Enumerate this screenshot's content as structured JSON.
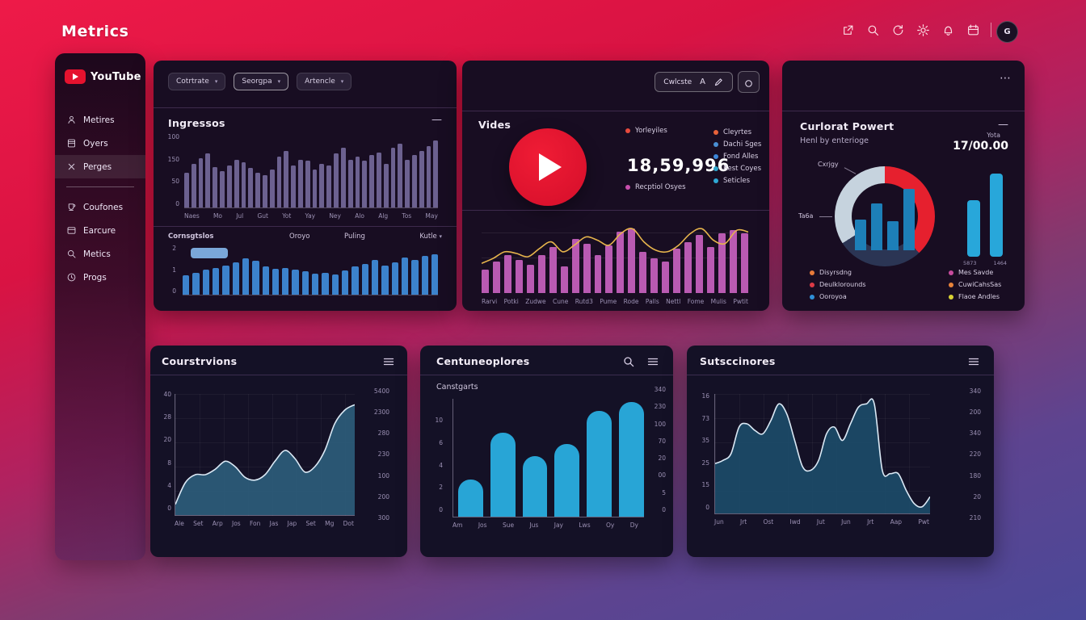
{
  "page": {
    "title": "Metrics",
    "avatar_initial": "G"
  },
  "topbar": {
    "icons": [
      "share",
      "search",
      "refresh",
      "gear",
      "bell",
      "calendar"
    ]
  },
  "sidebar": {
    "logo_text": "YouTube",
    "items": [
      {
        "icon": "person",
        "label": "Metires",
        "active": false
      },
      {
        "icon": "book",
        "label": "Oyers",
        "active": false
      },
      {
        "icon": "close",
        "label": "Perges",
        "active": true
      },
      {
        "icon": "cup",
        "label": "Coufones",
        "active": false
      },
      {
        "icon": "card",
        "label": "Earcure",
        "active": false
      },
      {
        "icon": "search",
        "label": "Metics",
        "active": false
      },
      {
        "icon": "clock",
        "label": "Progs",
        "active": false
      }
    ]
  },
  "cards": {
    "ingressos": {
      "filters": [
        "Cotrtrate",
        "Seorgpa",
        "Artencle"
      ],
      "title": "Ingressos",
      "collapse_label": "—",
      "sub_title": "Cornsgtslos",
      "sub_col1": "Oroyo",
      "sub_col2": "Puling",
      "sub_metric": "Kutle"
    },
    "vides": {
      "toolbar_label": "Cwlcste",
      "toolbar_letter": "A",
      "title": "Vides",
      "count": "18,59,996",
      "legend_left": [
        {
          "label": "Yorleyiles",
          "color": "#e84a3d"
        },
        {
          "label": "Recptiol Osyes",
          "color": "#c94fae"
        }
      ],
      "legend_right": [
        {
          "label": "Cleyrtes",
          "color": "#e8623a"
        },
        {
          "label": "Dachi Sges",
          "color": "#4a8fd4"
        },
        {
          "label": "Fond Alles",
          "color": "#3d86d8"
        },
        {
          "label": "Rest Coyes",
          "color": "#2fa4cc"
        },
        {
          "label": "Seticles",
          "color": "#2fa8d4"
        }
      ]
    },
    "powert": {
      "menu_label": "⋯",
      "title": "Curlorat Powert",
      "subtitle": "Henl by enterioge",
      "total_label": "Yota",
      "total_value": "17/00.00",
      "collapse_label": "—",
      "donut_label_top": "Cxrjgy",
      "donut_label_left": "Ta6a",
      "legend_left": [
        {
          "label": "Disyrsdng",
          "color": "#e87a3a"
        },
        {
          "label": "Deulklorounds",
          "color": "#dd3a46"
        },
        {
          "label": "Ooroyoa",
          "color": "#2f8fd8"
        }
      ],
      "legend_right": [
        {
          "label": "Mes Savde",
          "color": "#c84b9e"
        },
        {
          "label": "CuwiCahsSas",
          "color": "#e8833a"
        },
        {
          "label": "Flaoe Andles",
          "color": "#d9d233"
        }
      ]
    },
    "courstrvions": {
      "title": "Courstrvions"
    },
    "centneoplores": {
      "title": "Centuneoplores",
      "subtitle": "Canstgarts"
    },
    "sutscdnores": {
      "title": "Sutsccinores"
    }
  },
  "chart_data": [
    {
      "id": "ingressos_bars",
      "type": "bar",
      "values": [
        48,
        60,
        68,
        74,
        56,
        50,
        58,
        66,
        62,
        55,
        48,
        45,
        52,
        70,
        78,
        58,
        66,
        64,
        52,
        60,
        58,
        74,
        82,
        66,
        70,
        64,
        72,
        76,
        60,
        82,
        88,
        66,
        72,
        78,
        84,
        92
      ],
      "x_labels": [
        "Naes",
        "Mo",
        "Jul",
        "Gut",
        "Yot",
        "Yay",
        "Ney",
        "Alo",
        "Alg",
        "Tos",
        "May"
      ],
      "y_labels": [
        "100",
        "150",
        "50",
        "0"
      ],
      "ylim": [
        0,
        100
      ],
      "bar_color": "#6c6190",
      "title": "Ingressos"
    },
    {
      "id": "ingressos_categories",
      "type": "bar",
      "values": [
        38,
        44,
        50,
        54,
        58,
        64,
        72,
        68,
        56,
        52,
        54,
        50,
        46,
        42,
        44,
        40,
        48,
        56,
        62,
        70,
        58,
        64,
        74,
        70,
        78,
        80
      ],
      "y_labels": [
        "2",
        "1",
        "0"
      ],
      "ylim": [
        0,
        100
      ],
      "bar_color": "#3c82cc",
      "title": "Cornsgtslos"
    },
    {
      "id": "vides_mix",
      "type": "bar",
      "values": [
        28,
        38,
        46,
        40,
        34,
        46,
        56,
        32,
        66,
        60,
        46,
        58,
        74,
        78,
        50,
        42,
        38,
        54,
        62,
        70,
        56,
        72,
        76,
        72
      ],
      "line_values": [
        36,
        42,
        50,
        48,
        44,
        54,
        62,
        50,
        58,
        68,
        64,
        58,
        72,
        78,
        62,
        52,
        50,
        58,
        72,
        78,
        64,
        60,
        76,
        74
      ],
      "x_labels": [
        "Rarvi",
        "Potki",
        "Zudwe",
        "Cune",
        "Rutd3",
        "Pume",
        "Rode",
        "Palls",
        "Nettl",
        "Fome",
        "Mulis",
        "Pwtit"
      ],
      "ylim": [
        0,
        90
      ],
      "bar_color": "#b95ab2",
      "line_color": "#e6b44c",
      "title": "Vides"
    },
    {
      "id": "powert_donut",
      "type": "pie",
      "segments": [
        {
          "label": "Cxrjgy",
          "value": 38,
          "color": "#e6202e"
        },
        {
          "label": "",
          "value": 28,
          "color": "#2b3554"
        },
        {
          "label": "Ta6a",
          "value": 34,
          "color": "#c6d3de"
        }
      ],
      "title": "Curlorat Powert"
    },
    {
      "id": "powert_inner_bars",
      "type": "bar",
      "values": [
        38,
        58,
        36,
        76
      ],
      "ylim": [
        0,
        80
      ],
      "bar_color": "#1d7fb8"
    },
    {
      "id": "powert_side_bars",
      "type": "bar",
      "values": [
        68,
        100
      ],
      "x_labels": [
        "5873",
        "1464"
      ],
      "ylim": [
        0,
        100
      ],
      "bar_color": "#28a7da"
    },
    {
      "id": "courstrvions_area",
      "type": "area",
      "values": [
        4,
        12,
        15,
        15,
        17,
        20,
        18,
        14,
        13,
        15,
        20,
        24,
        21,
        16,
        18,
        24,
        34,
        39,
        41
      ],
      "x_labels": [
        "Ale",
        "Set",
        "Arp",
        "Jos",
        "Fon",
        "Jas",
        "Jap",
        "Set",
        "Mg",
        "Dot"
      ],
      "y_labels_left": [
        "40",
        "28",
        "20",
        "8",
        "4",
        "0"
      ],
      "y_labels_right": [
        "5400",
        "2300",
        "280",
        "230",
        "100",
        "200",
        "300"
      ],
      "ylim": [
        0,
        45
      ],
      "fill": "#2c5b7a",
      "stroke": "#dbe9f5",
      "title": "Courstrvions"
    },
    {
      "id": "centneoplores_bars",
      "type": "bar",
      "values": [
        2.2,
        5,
        3.6,
        4.3,
        6.3,
        6.8
      ],
      "x_labels": [
        "Am",
        "Jos",
        "Sue",
        "Jus",
        "Jay",
        "Lws",
        "Oy",
        "Dy"
      ],
      "y_labels_left": [
        "10",
        "6",
        "4",
        "2",
        "0"
      ],
      "y_labels_right": [
        "340",
        "230",
        "100",
        "70",
        "20",
        "00",
        "5",
        "0"
      ],
      "ylim": [
        0,
        7
      ],
      "bar_color": "#28a5d6",
      "title": "Canstgarts"
    },
    {
      "id": "sutscdnores_area",
      "type": "area",
      "values": [
        15,
        16,
        18,
        26,
        27,
        25,
        24,
        28,
        33,
        30,
        22,
        14,
        13,
        16,
        24,
        26,
        22,
        27,
        32,
        33,
        33,
        13,
        12,
        12,
        7,
        3,
        2,
        5
      ],
      "x_labels": [
        "Jun",
        "Jrt",
        "Ost",
        "Iwd",
        "Jut",
        "Jun",
        "Jrt",
        "Aap",
        "Pwt"
      ],
      "y_labels_left": [
        "16",
        "73",
        "35",
        "25",
        "15",
        "0"
      ],
      "y_labels_right": [
        "340",
        "200",
        "340",
        "220",
        "180",
        "20",
        "210"
      ],
      "ylim": [
        0,
        36
      ],
      "fill": "#1c4a68",
      "stroke": "#dbe9f5",
      "title": "Sutsccinores"
    }
  ]
}
